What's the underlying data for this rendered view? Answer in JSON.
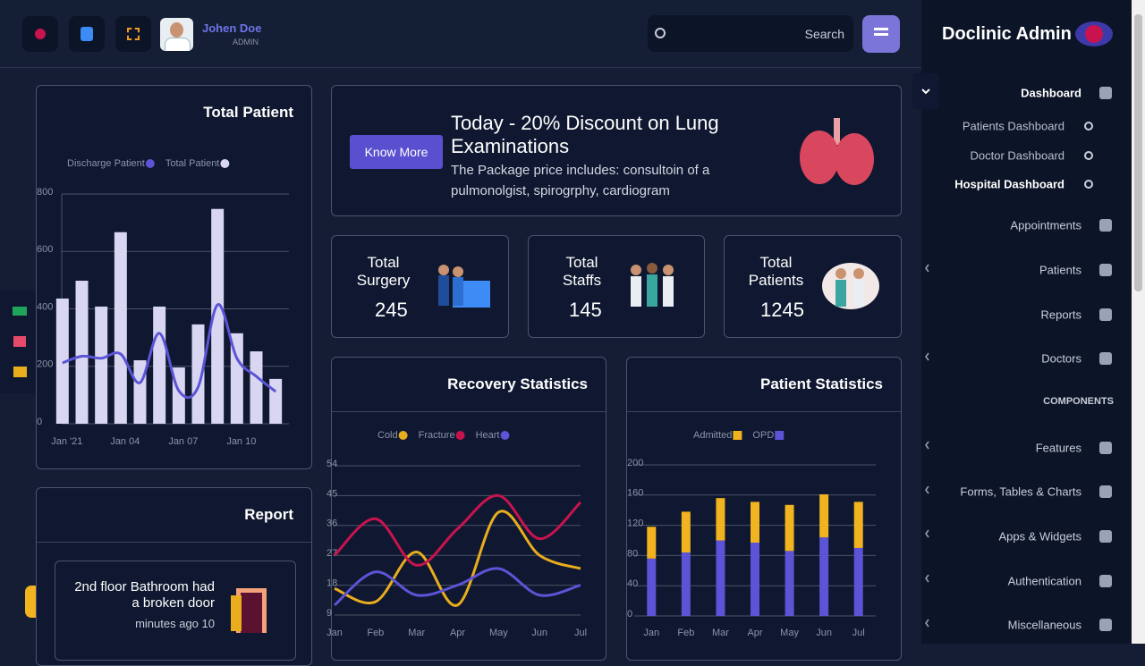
{
  "header": {
    "user_name": "Johen Doe",
    "role": "ADMIN",
    "search": "Search"
  },
  "sidebar": {
    "brand": "Doclinic Admin",
    "dashboard": "Dashboard",
    "dashboard_items": [
      "Patients Dashboard",
      "Doctor Dashboard",
      "Hospital Dashboard"
    ],
    "menu": [
      "Appointments",
      "Patients",
      "Reports",
      "Doctors"
    ],
    "section": "COMPONENTS",
    "components": [
      "Features",
      "Forms, Tables & Charts",
      "Apps & Widgets",
      "Authentication",
      "Miscellaneous"
    ]
  },
  "promo": {
    "button": "Know More",
    "title": "Today - 20% Discount on Lung Examinations",
    "text": "The Package price includes: consultoin of a pulmonolgist, spirogrphy, cardiogram"
  },
  "stats": [
    {
      "label": "Total Surgery",
      "value": 245
    },
    {
      "label": "Total Staffs",
      "value": 145
    },
    {
      "label": "Total Patients",
      "value": 1245
    }
  ],
  "report": {
    "title": "Report",
    "item": "2nd floor Bathroom had a broken door",
    "time": "minutes ago 10"
  },
  "chart_data": [
    {
      "type": "combo",
      "title": "Total Patient",
      "categories": [
        "Jan '21",
        null,
        null,
        "Jan 04",
        null,
        null,
        "Jan 07",
        null,
        null,
        "Jan 10",
        null,
        null
      ],
      "series": [
        {
          "name": "Discharge Patient",
          "color": "#5b54d6",
          "mark": "line",
          "values": [
            212,
            235,
            228,
            243,
            143,
            315,
            115,
            128,
            414,
            228,
            165,
            112
          ]
        },
        {
          "name": "Total Patient",
          "color": "#d9d6f2",
          "mark": "bar",
          "values": [
            436,
            498,
            408,
            667,
            221,
            408,
            196,
            346,
            748,
            315,
            252,
            156
          ]
        }
      ],
      "ylim": [
        0,
        800
      ],
      "yticks": [
        0,
        200,
        400,
        600,
        800
      ],
      "grid": true
    },
    {
      "type": "line",
      "title": "Recovery Statistics",
      "categories": [
        "Jan",
        "Feb",
        "Mar",
        "Apr",
        "May",
        "Jun",
        "Jul"
      ],
      "series": [
        {
          "name": "Cold",
          "color": "#e9ad1e",
          "values": [
            17,
            13,
            28,
            12,
            40,
            27,
            23
          ]
        },
        {
          "name": "Fracture",
          "color": "#c8134e",
          "values": [
            27,
            38,
            24,
            35,
            45,
            32,
            43
          ]
        },
        {
          "name": "Heart",
          "color": "#5b54d6",
          "values": [
            12,
            22,
            15,
            18,
            23,
            15,
            18
          ]
        }
      ],
      "ylim": [
        9,
        54
      ],
      "yticks": [
        9,
        18,
        27,
        36,
        45,
        54
      ],
      "grid": true
    },
    {
      "type": "stacked_bar",
      "title": "Patient Statistics",
      "categories": [
        "Jan",
        "Feb",
        "Mar",
        "Apr",
        "May",
        "Jun",
        "Jul"
      ],
      "series": [
        {
          "name": "Admitted",
          "color": "#f2b321",
          "values": [
            42,
            54,
            56,
            54,
            61,
            57,
            61
          ]
        },
        {
          "name": "OPD",
          "color": "#5b54d6",
          "values": [
            76,
            84,
            100,
            97,
            86,
            104,
            90
          ]
        }
      ],
      "ylim": [
        0,
        200
      ],
      "yticks": [
        0,
        40,
        80,
        120,
        160,
        200
      ],
      "grid": true
    }
  ]
}
